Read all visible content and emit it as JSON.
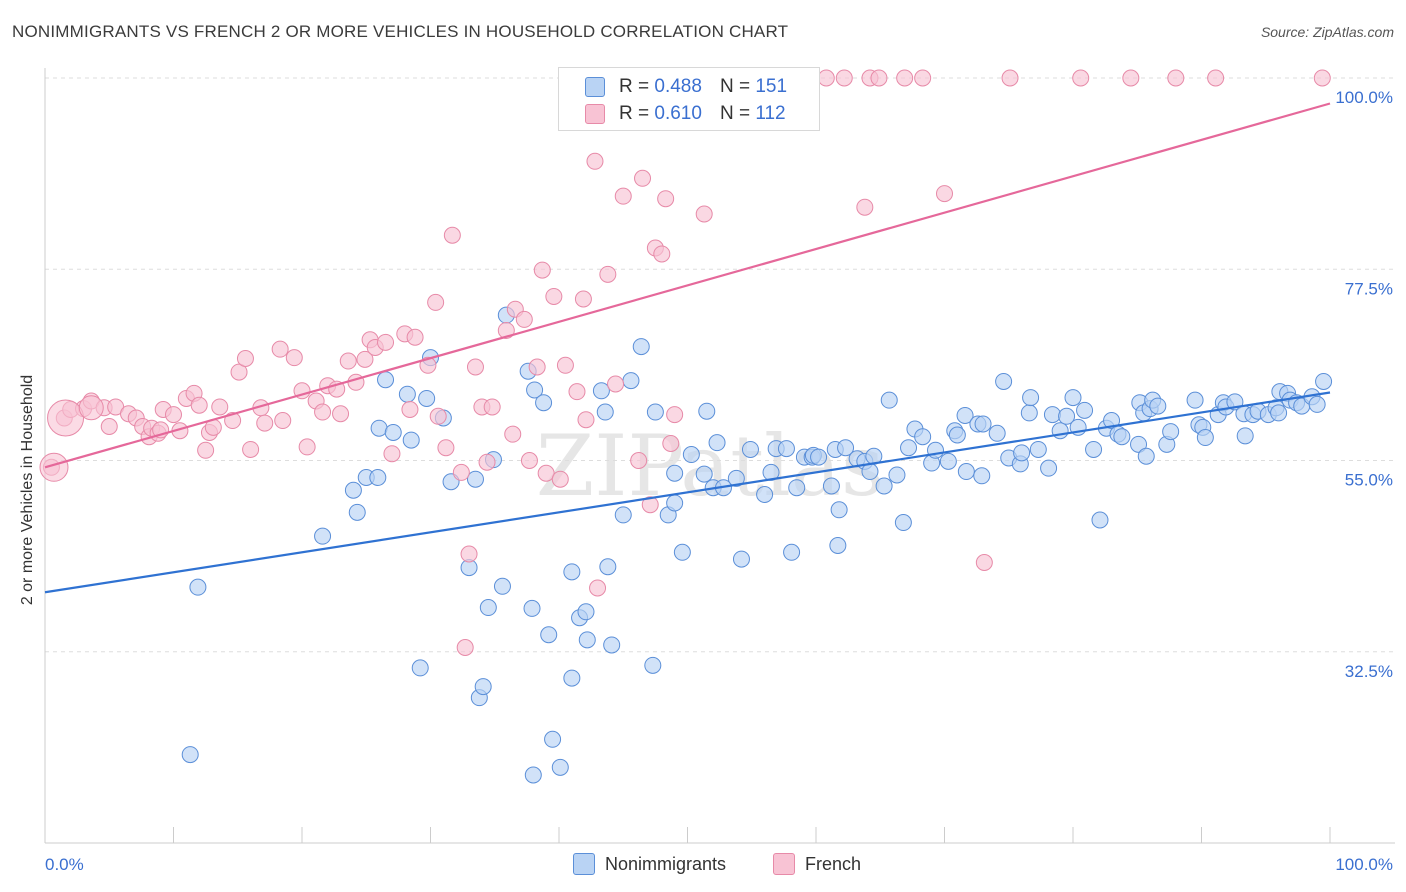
{
  "title": "NONIMMIGRANTS VS FRENCH 2 OR MORE VEHICLES IN HOUSEHOLD CORRELATION CHART",
  "source": "Source: ZipAtlas.com",
  "watermark": "ZIPatlas",
  "legend": {
    "rows": [
      {
        "r_label": "R =",
        "r_value": "0.488",
        "n_label": "N =",
        "n_value": "151"
      },
      {
        "r_label": "R =",
        "r_value": "0.610",
        "n_label": "N =",
        "n_value": "112"
      }
    ]
  },
  "bottom_legend": [
    "Nonimmigrants",
    "French"
  ],
  "colors": {
    "blue_fill": "#b9d3f4",
    "blue_stroke": "#5b8fd8",
    "blue_line": "#2f72d2",
    "pink_fill": "#f8c3d4",
    "pink_stroke": "#e78aa8",
    "pink_line": "#e5689a",
    "tick_text": "#3a6fd0",
    "grid": "#dddddd"
  },
  "chart_data": {
    "type": "scatter",
    "title": "NONIMMIGRANTS VS FRENCH 2 OR MORE VEHICLES IN HOUSEHOLD CORRELATION CHART",
    "xlabel": "",
    "ylabel": "2 or more Vehicles in Household",
    "xlim": [
      0,
      100
    ],
    "ylim": [
      10,
      100
    ],
    "x_tick_labels": [
      "0.0%",
      "100.0%"
    ],
    "y_ticks": [
      32.5,
      55.0,
      77.5,
      100.0
    ],
    "y_tick_labels": [
      "32.5%",
      "55.0%",
      "77.5%",
      "100.0%"
    ],
    "series": [
      {
        "name": "Nonimmigrants",
        "r": 0.488,
        "n": 151,
        "trend": [
          [
            0,
            39.5
          ],
          [
            100,
            63.0
          ]
        ],
        "points": [
          [
            11.9,
            40.1
          ],
          [
            11.3,
            20.4
          ],
          [
            21.6,
            46.1
          ],
          [
            24.0,
            51.5
          ],
          [
            24.3,
            48.9
          ],
          [
            25.0,
            53.0
          ],
          [
            25.9,
            53.0
          ],
          [
            26.0,
            58.8
          ],
          [
            26.5,
            64.5
          ],
          [
            27.1,
            58.3
          ],
          [
            28.2,
            62.8
          ],
          [
            28.5,
            57.4
          ],
          [
            29.2,
            30.6
          ],
          [
            29.7,
            62.3
          ],
          [
            30.0,
            67.1
          ],
          [
            31.0,
            60.0
          ],
          [
            31.6,
            52.5
          ],
          [
            33.0,
            42.4
          ],
          [
            33.5,
            52.8
          ],
          [
            33.8,
            27.1
          ],
          [
            34.1,
            28.4
          ],
          [
            34.5,
            37.7
          ],
          [
            34.9,
            55.1
          ],
          [
            35.6,
            40.2
          ],
          [
            35.9,
            72.1
          ],
          [
            37.6,
            65.5
          ],
          [
            37.9,
            37.6
          ],
          [
            38.0,
            18.0
          ],
          [
            38.1,
            63.3
          ],
          [
            38.8,
            61.8
          ],
          [
            39.2,
            34.5
          ],
          [
            39.5,
            22.2
          ],
          [
            40.1,
            18.9
          ],
          [
            41.0,
            41.9
          ],
          [
            41.0,
            29.4
          ],
          [
            41.6,
            36.5
          ],
          [
            42.1,
            37.2
          ],
          [
            42.2,
            33.9
          ],
          [
            43.3,
            63.2
          ],
          [
            43.6,
            60.7
          ],
          [
            43.8,
            42.5
          ],
          [
            44.1,
            33.3
          ],
          [
            45.0,
            48.6
          ],
          [
            45.6,
            64.4
          ],
          [
            46.4,
            68.4
          ],
          [
            47.3,
            30.9
          ],
          [
            47.5,
            60.7
          ],
          [
            48.5,
            48.6
          ],
          [
            49.0,
            53.5
          ],
          [
            49.0,
            50.0
          ],
          [
            49.6,
            44.2
          ],
          [
            50.3,
            55.7
          ],
          [
            51.3,
            53.4
          ],
          [
            51.5,
            60.8
          ],
          [
            52.0,
            51.8
          ],
          [
            52.3,
            57.1
          ],
          [
            52.8,
            51.8
          ],
          [
            53.8,
            52.9
          ],
          [
            54.2,
            43.4
          ],
          [
            54.9,
            56.3
          ],
          [
            56.0,
            51.0
          ],
          [
            56.5,
            53.6
          ],
          [
            56.9,
            56.4
          ],
          [
            57.7,
            56.4
          ],
          [
            58.1,
            44.2
          ],
          [
            58.5,
            51.8
          ],
          [
            59.1,
            55.4
          ],
          [
            59.7,
            55.4
          ],
          [
            59.8,
            55.6
          ],
          [
            60.2,
            55.4
          ],
          [
            61.2,
            52.0
          ],
          [
            61.5,
            56.3
          ],
          [
            61.7,
            45.0
          ],
          [
            61.8,
            49.2
          ],
          [
            62.3,
            56.5
          ],
          [
            63.2,
            55.2
          ],
          [
            63.8,
            54.9
          ],
          [
            64.2,
            53.7
          ],
          [
            64.5,
            55.5
          ],
          [
            65.3,
            52.0
          ],
          [
            65.7,
            62.1
          ],
          [
            66.3,
            53.3
          ],
          [
            66.8,
            47.7
          ],
          [
            67.2,
            56.5
          ],
          [
            67.7,
            58.7
          ],
          [
            68.3,
            57.8
          ],
          [
            69.0,
            54.7
          ],
          [
            69.3,
            56.2
          ],
          [
            70.3,
            54.9
          ],
          [
            70.8,
            58.5
          ],
          [
            71.0,
            58.0
          ],
          [
            71.6,
            60.3
          ],
          [
            71.7,
            53.7
          ],
          [
            72.6,
            59.3
          ],
          [
            72.9,
            53.2
          ],
          [
            73.0,
            59.3
          ],
          [
            74.1,
            58.2
          ],
          [
            74.6,
            64.3
          ],
          [
            75.0,
            55.3
          ],
          [
            75.9,
            54.6
          ],
          [
            76.0,
            55.9
          ],
          [
            76.6,
            60.6
          ],
          [
            76.7,
            62.4
          ],
          [
            77.3,
            56.3
          ],
          [
            78.1,
            54.1
          ],
          [
            78.4,
            60.4
          ],
          [
            79.0,
            58.5
          ],
          [
            79.5,
            60.2
          ],
          [
            80.0,
            62.4
          ],
          [
            80.4,
            58.9
          ],
          [
            80.9,
            60.9
          ],
          [
            81.6,
            56.3
          ],
          [
            82.1,
            48.0
          ],
          [
            82.6,
            58.8
          ],
          [
            83.0,
            59.7
          ],
          [
            83.5,
            58.1
          ],
          [
            83.8,
            57.8
          ],
          [
            85.1,
            56.9
          ],
          [
            85.2,
            61.8
          ],
          [
            85.5,
            60.6
          ],
          [
            85.7,
            55.5
          ],
          [
            86.0,
            61.1
          ],
          [
            86.2,
            62.1
          ],
          [
            86.6,
            61.4
          ],
          [
            87.3,
            56.9
          ],
          [
            87.6,
            58.4
          ],
          [
            89.5,
            62.1
          ],
          [
            89.8,
            59.2
          ],
          [
            90.1,
            58.9
          ],
          [
            90.3,
            57.7
          ],
          [
            91.3,
            60.4
          ],
          [
            91.7,
            61.8
          ],
          [
            91.9,
            61.3
          ],
          [
            92.6,
            61.9
          ],
          [
            93.3,
            60.5
          ],
          [
            93.4,
            57.9
          ],
          [
            94.0,
            60.4
          ],
          [
            94.4,
            60.8
          ],
          [
            95.2,
            60.4
          ],
          [
            95.8,
            61.2
          ],
          [
            96.0,
            60.6
          ],
          [
            96.1,
            63.1
          ],
          [
            96.7,
            62.9
          ],
          [
            96.9,
            62.1
          ],
          [
            97.4,
            61.8
          ],
          [
            97.8,
            61.4
          ],
          [
            98.6,
            62.5
          ],
          [
            99.0,
            61.6
          ],
          [
            99.5,
            64.3
          ]
        ]
      },
      {
        "name": "French",
        "r": 0.61,
        "n": 112,
        "trend": [
          [
            0,
            54.2
          ],
          [
            100,
            97.0
          ]
        ],
        "points": [
          [
            0.5,
            54.2
          ],
          [
            1.5,
            60.0
          ],
          [
            2.0,
            61.0
          ],
          [
            3.0,
            61.1
          ],
          [
            3.6,
            62.0
          ],
          [
            4.6,
            61.2
          ],
          [
            5.0,
            59.0
          ],
          [
            5.5,
            61.3
          ],
          [
            6.5,
            60.5
          ],
          [
            7.1,
            60.0
          ],
          [
            7.6,
            59.0
          ],
          [
            8.1,
            57.8
          ],
          [
            8.3,
            58.8
          ],
          [
            8.8,
            58.2
          ],
          [
            9.0,
            58.6
          ],
          [
            9.2,
            61.0
          ],
          [
            10.0,
            60.4
          ],
          [
            10.5,
            58.5
          ],
          [
            11.0,
            62.3
          ],
          [
            11.6,
            62.9
          ],
          [
            12.0,
            61.5
          ],
          [
            12.5,
            56.2
          ],
          [
            12.8,
            58.3
          ],
          [
            13.1,
            58.9
          ],
          [
            13.6,
            61.3
          ],
          [
            14.6,
            59.7
          ],
          [
            15.1,
            65.4
          ],
          [
            15.6,
            67.0
          ],
          [
            16.0,
            56.3
          ],
          [
            16.8,
            61.2
          ],
          [
            17.1,
            59.4
          ],
          [
            18.3,
            68.1
          ],
          [
            18.5,
            59.7
          ],
          [
            19.4,
            67.1
          ],
          [
            20.0,
            63.2
          ],
          [
            20.4,
            56.6
          ],
          [
            21.1,
            62.0
          ],
          [
            21.6,
            60.7
          ],
          [
            22.0,
            63.8
          ],
          [
            22.7,
            63.4
          ],
          [
            23.0,
            60.5
          ],
          [
            23.6,
            66.7
          ],
          [
            24.2,
            64.2
          ],
          [
            24.9,
            66.9
          ],
          [
            25.3,
            69.2
          ],
          [
            25.7,
            68.3
          ],
          [
            26.5,
            68.9
          ],
          [
            27.0,
            55.8
          ],
          [
            28.0,
            69.9
          ],
          [
            28.4,
            61.0
          ],
          [
            28.8,
            69.5
          ],
          [
            29.8,
            66.2
          ],
          [
            30.4,
            73.6
          ],
          [
            30.6,
            60.2
          ],
          [
            31.2,
            56.5
          ],
          [
            31.7,
            81.5
          ],
          [
            32.4,
            53.6
          ],
          [
            32.7,
            33.0
          ],
          [
            33.0,
            44.0
          ],
          [
            33.5,
            66.0
          ],
          [
            34.0,
            61.3
          ],
          [
            34.4,
            54.8
          ],
          [
            34.8,
            61.3
          ],
          [
            35.9,
            70.3
          ],
          [
            36.4,
            58.1
          ],
          [
            36.6,
            72.8
          ],
          [
            37.3,
            71.6
          ],
          [
            37.7,
            55.0
          ],
          [
            38.3,
            66.0
          ],
          [
            38.7,
            77.4
          ],
          [
            39.0,
            53.5
          ],
          [
            39.6,
            74.3
          ],
          [
            40.1,
            52.8
          ],
          [
            40.5,
            66.2
          ],
          [
            41.4,
            63.1
          ],
          [
            41.9,
            74.0
          ],
          [
            42.1,
            59.8
          ],
          [
            42.8,
            90.2
          ],
          [
            43.0,
            40.0
          ],
          [
            43.8,
            76.9
          ],
          [
            44.4,
            64.0
          ],
          [
            45.0,
            86.1
          ],
          [
            46.2,
            55.0
          ],
          [
            46.5,
            88.2
          ],
          [
            47.1,
            49.8
          ],
          [
            47.5,
            80.0
          ],
          [
            48.0,
            79.3
          ],
          [
            48.3,
            85.8
          ],
          [
            48.7,
            57.0
          ],
          [
            49.0,
            60.4
          ],
          [
            51.3,
            84.0
          ],
          [
            55.5,
            100.0
          ],
          [
            60.8,
            100.0
          ],
          [
            63.8,
            84.8
          ],
          [
            64.2,
            100.0
          ],
          [
            68.3,
            100.0
          ],
          [
            70.0,
            86.4
          ],
          [
            73.1,
            43.0
          ],
          [
            80.6,
            100.0
          ],
          [
            84.5,
            100.0
          ],
          [
            88.0,
            100.0
          ],
          [
            91.1,
            100.0
          ],
          [
            99.4,
            100.0
          ],
          [
            45.5,
            100.0
          ],
          [
            47.8,
            100.0
          ],
          [
            48.2,
            100.0
          ],
          [
            53.1,
            100.0
          ],
          [
            58.8,
            100.0
          ],
          [
            59.5,
            100.0
          ],
          [
            62.2,
            100.0
          ],
          [
            64.9,
            100.0
          ],
          [
            66.9,
            100.0
          ],
          [
            75.1,
            100.0
          ]
        ]
      }
    ]
  }
}
